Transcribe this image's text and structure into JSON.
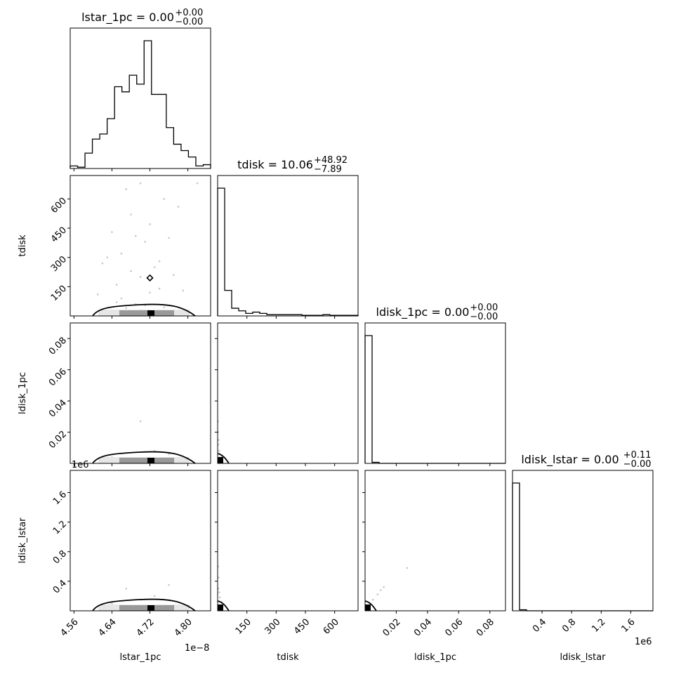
{
  "chart_data": {
    "type": "corner",
    "parameters": [
      {
        "name": "lstar_1pc",
        "title_prefix": "lstar_1pc = 0.00",
        "title_plus": "+0.00",
        "title_minus": "−0.00",
        "range": [
          4.552,
          4.848
        ],
        "ticks": [
          4.56,
          4.64,
          4.72,
          4.8
        ],
        "tick_labels": [
          "4.56",
          "4.64",
          "4.72",
          "4.80"
        ],
        "offset_label": "1e−8",
        "hist": [
          0.02,
          0.01,
          0.12,
          0.23,
          0.27,
          0.39,
          0.64,
          0.6,
          0.73,
          0.66,
          1.0,
          0.58,
          0.58,
          0.32,
          0.19,
          0.14,
          0.09,
          0.02,
          0.03
        ]
      },
      {
        "name": "tdisk",
        "title_prefix": "tdisk = 10.06",
        "title_plus": "+48.92",
        "title_minus": "−7.89",
        "range": [
          0,
          720
        ],
        "ticks": [
          150,
          300,
          450,
          600
        ],
        "tick_labels": [
          "150",
          "300",
          "450",
          "600"
        ],
        "offset_label": "",
        "hist": [
          1.0,
          0.2,
          0.06,
          0.04,
          0.02,
          0.03,
          0.02,
          0.01,
          0.01,
          0.01,
          0.01,
          0.01,
          0.005,
          0.005,
          0.005,
          0.01,
          0.005,
          0.005,
          0.005,
          0.005
        ]
      },
      {
        "name": "ldisk_1pc",
        "title_prefix": "ldisk_1pc = 0.00",
        "title_plus": "+0.00",
        "title_minus": "−0.00",
        "range": [
          0,
          0.09
        ],
        "ticks": [
          0.02,
          0.04,
          0.06,
          0.08
        ],
        "tick_labels": [
          "0.02",
          "0.04",
          "0.06",
          "0.08"
        ],
        "offset_label": "",
        "hist": [
          1.0,
          0.008,
          0.0,
          0.0,
          0.0,
          0.0,
          0.0,
          0.0,
          0.0,
          0.0,
          0.0,
          0.0,
          0.0,
          0.0,
          0.0,
          0.0,
          0.0,
          0.0,
          0.0,
          0.0
        ]
      },
      {
        "name": "ldisk_lstar",
        "title_prefix": "ldisk_lstar = 0.00",
        "title_plus": "+0.11",
        "title_minus": "−0.00",
        "range": [
          0,
          1900000
        ],
        "ticks": [
          400000,
          800000,
          1200000,
          1600000
        ],
        "tick_labels": [
          "0.4",
          "0.8",
          "1.2",
          "1.6"
        ],
        "offset_label": "1e6",
        "hist": [
          1.0,
          0.008,
          0.0,
          0.0,
          0.0,
          0.0,
          0.0,
          0.0,
          0.0,
          0.0,
          0.0,
          0.0,
          0.0,
          0.0,
          0.0,
          0.0,
          0.0,
          0.0,
          0.0,
          0.0
        ]
      }
    ],
    "scatter_points": {
      "1_0": [
        [
          4.62,
          10
        ],
        [
          4.66,
          15
        ],
        [
          4.68,
          8
        ],
        [
          4.7,
          12
        ],
        [
          4.72,
          6
        ],
        [
          4.74,
          18
        ],
        [
          4.76,
          9
        ],
        [
          4.64,
          25
        ],
        [
          4.7,
          30
        ],
        [
          4.73,
          22
        ],
        [
          4.67,
          40
        ],
        [
          4.71,
          55
        ],
        [
          4.69,
          60
        ],
        [
          4.75,
          45
        ],
        [
          4.66,
          90
        ],
        [
          4.72,
          120
        ],
        [
          4.65,
          160
        ],
        [
          4.7,
          200
        ],
        [
          4.68,
          230
        ],
        [
          4.73,
          250
        ],
        [
          4.74,
          280
        ],
        [
          4.66,
          320
        ],
        [
          4.71,
          380
        ],
        [
          4.69,
          410
        ],
        [
          4.64,
          430
        ],
        [
          4.72,
          470
        ],
        [
          4.68,
          520
        ],
        [
          4.78,
          560
        ],
        [
          4.75,
          600
        ],
        [
          4.7,
          680
        ],
        [
          4.82,
          680
        ],
        [
          4.63,
          300
        ],
        [
          4.77,
          210
        ],
        [
          4.61,
          110
        ],
        [
          4.79,
          130
        ],
        [
          4.62,
          270
        ],
        [
          4.76,
          400
        ],
        [
          4.67,
          650
        ],
        [
          4.74,
          140
        ],
        [
          4.65,
          70
        ]
      ],
      "2_0": [
        [
          4.7,
          0.027
        ],
        [
          4.73,
          0.008
        ],
        [
          4.64,
          0.004
        ],
        [
          4.76,
          0.006
        ],
        [
          4.68,
          0.003
        ],
        [
          4.72,
          0.002
        ]
      ],
      "2_1": [
        [
          2,
          0.027
        ],
        [
          3,
          0.02
        ],
        [
          5,
          0.015
        ],
        [
          4,
          0.012
        ],
        [
          8,
          0.008
        ],
        [
          12,
          0.006
        ],
        [
          20,
          0.004
        ],
        [
          40,
          0.003
        ]
      ],
      "3_0": [
        [
          4.73,
          200000
        ],
        [
          4.67,
          300000
        ],
        [
          4.76,
          350000
        ],
        [
          4.7,
          150000
        ],
        [
          4.64,
          100000
        ]
      ],
      "3_1": [
        [
          3,
          600000
        ],
        [
          5,
          450000
        ],
        [
          4,
          300000
        ],
        [
          8,
          250000
        ],
        [
          12,
          180000
        ],
        [
          20,
          120000
        ]
      ],
      "3_2": [
        [
          0.027,
          580000
        ],
        [
          0.012,
          320000
        ],
        [
          0.01,
          280000
        ],
        [
          0.008,
          220000
        ],
        [
          0.005,
          150000
        ],
        [
          0.003,
          100000
        ]
      ]
    },
    "truth_marker": {
      "panel": "1_0",
      "x": 4.72,
      "y": 195
    }
  }
}
